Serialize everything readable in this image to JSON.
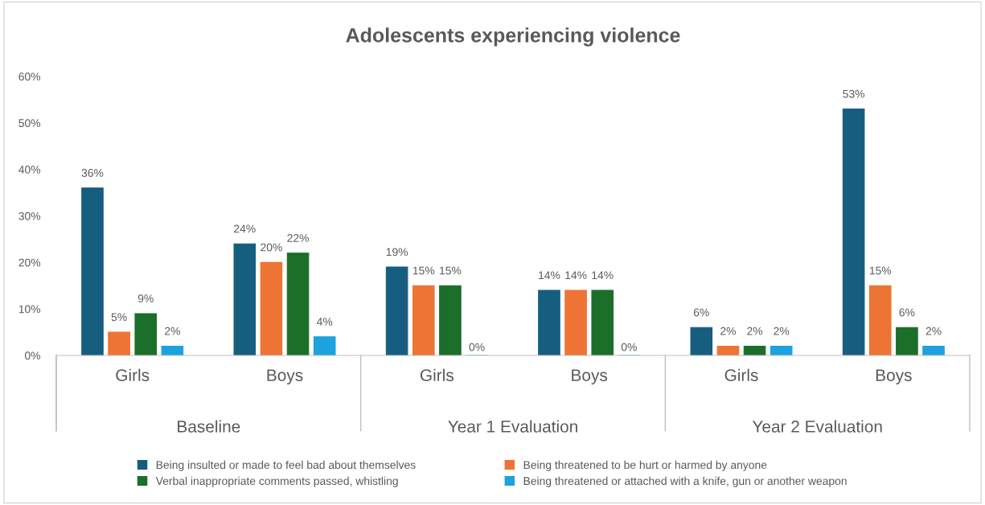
{
  "chart_data": {
    "type": "bar",
    "title": "Adolescents experiencing violence",
    "categories": [
      "Girls",
      "Boys",
      "Girls",
      "Boys",
      "Girls",
      "Boys"
    ],
    "annotations": [
      "Baseline",
      "Year 1 Evaluation",
      "Year 2 Evaluation"
    ],
    "series": [
      {
        "name": "Being insulted or made to feel bad about themselves",
        "color": "#165e80",
        "values": [
          36,
          24,
          19,
          14,
          6,
          53
        ],
        "value_labels": [
          "36%",
          "24%",
          "19%",
          "14%",
          "6%",
          "53%"
        ]
      },
      {
        "name": "Being threatened to be hurt or harmed by anyone",
        "color": "#ed7434",
        "values": [
          5,
          20,
          15,
          14,
          2,
          15
        ],
        "value_labels": [
          "5%",
          "20%",
          "15%",
          "14%",
          "2%",
          "15%"
        ]
      },
      {
        "name": "Verbal inappropriate comments passed, whistling",
        "color": "#1c6e2b",
        "values": [
          9,
          22,
          15,
          14,
          2,
          6
        ],
        "value_labels": [
          "9%",
          "22%",
          "15%",
          "14%",
          "2%",
          "6%"
        ]
      },
      {
        "name": "Being threatened or attached with a knife, gun or another weapon",
        "color": "#1ca3dd",
        "values": [
          2,
          4,
          0,
          0,
          2,
          2
        ],
        "value_labels": [
          "2%",
          "4%",
          "0%",
          "0%",
          "2%",
          "2%"
        ]
      }
    ],
    "ylim": [
      0,
      60
    ],
    "yticks": [
      {
        "value": 0,
        "label": "0%"
      },
      {
        "value": 10,
        "label": "10%"
      },
      {
        "value": 20,
        "label": "20%"
      },
      {
        "value": 30,
        "label": "30%"
      },
      {
        "value": 40,
        "label": "40%"
      },
      {
        "value": 50,
        "label": "50%"
      },
      {
        "value": 60,
        "label": "60%"
      }
    ],
    "grid": false,
    "legend": "bottom"
  }
}
